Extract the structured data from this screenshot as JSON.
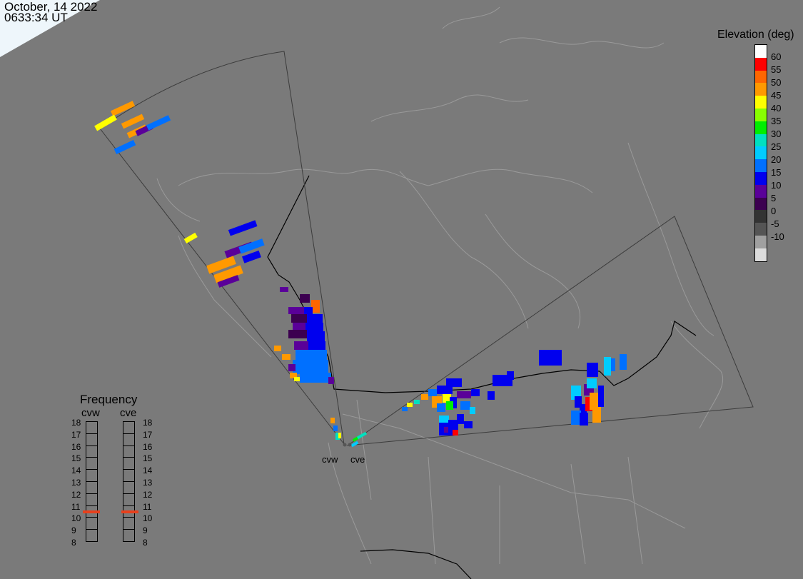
{
  "header": {
    "date": "October, 14 2022",
    "time": "0633:34 UT"
  },
  "legend": {
    "title": "Elevation (deg)",
    "colors": [
      "#ffffff",
      "#ff0000",
      "#ff6600",
      "#ff9900",
      "#ffff00",
      "#88ff00",
      "#00ee00",
      "#00e0c0",
      "#00ccff",
      "#0070ff",
      "#0000ee",
      "#5a0099",
      "#3c0050",
      "#333333",
      "#555555",
      "#a0a0a0",
      "#dcdcdc"
    ],
    "labels": [
      "60",
      "55",
      "50",
      "45",
      "40",
      "35",
      "30",
      "25",
      "20",
      "15",
      "10",
      "5",
      "0",
      "-5",
      "-10"
    ]
  },
  "frequency": {
    "title": "Frequency",
    "radars": [
      "cvw",
      "cve"
    ],
    "scale": [
      "18",
      "17",
      "16",
      "15",
      "14",
      "13",
      "12",
      "11",
      "10",
      "9",
      "8"
    ],
    "markers": {
      "cvw": 10.5,
      "cve": 10.5
    },
    "marker_color": "#e8401c"
  },
  "sites": [
    {
      "name": "cvw"
    },
    {
      "name": "cve"
    }
  ]
}
